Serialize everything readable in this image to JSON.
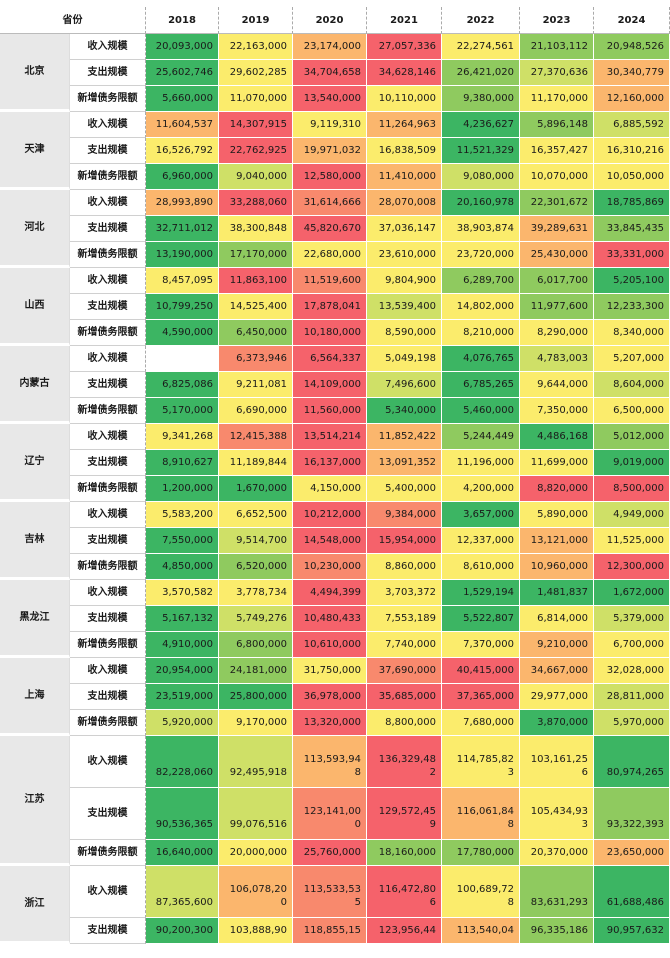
{
  "header": {
    "province_label": "省份",
    "years": [
      "2018",
      "2019",
      "2020",
      "2021",
      "2022",
      "2023",
      "2024"
    ]
  },
  "metric_labels": {
    "income": "收入规模",
    "expenditure": "支出规模",
    "new_debt": "新增债务限额"
  },
  "colors": {
    "deep_green": "#3cb563",
    "green": "#8fca5f",
    "yellow_green": "#cfe067",
    "yellow": "#fbec6c",
    "orange": "#fbb66d",
    "red_orange": "#f8896d",
    "red": "#f5626b",
    "empty": "#ffffff"
  },
  "provinces": [
    {
      "name": "北京",
      "rows": [
        {
          "metric": "收入规模",
          "values": [
            "20,093,000",
            "22,163,000",
            "23,174,000",
            "27,057,336",
            "22,274,561",
            "21,103,112",
            "20,948,526"
          ],
          "colors": [
            "deep_green",
            "yellow",
            "orange",
            "red",
            "yellow",
            "green",
            "green"
          ]
        },
        {
          "metric": "支出规模",
          "values": [
            "25,602,746",
            "29,602,285",
            "34,704,658",
            "34,628,146",
            "26,421,020",
            "27,370,636",
            "30,340,779"
          ],
          "colors": [
            "deep_green",
            "yellow",
            "red",
            "red",
            "green",
            "yellow_green",
            "orange"
          ]
        },
        {
          "metric": "新增债务限额",
          "values": [
            "5,660,000",
            "11,070,000",
            "13,540,000",
            "10,110,000",
            "9,380,000",
            "11,170,000",
            "12,160,000"
          ],
          "colors": [
            "deep_green",
            "yellow",
            "red",
            "yellow",
            "green",
            "yellow",
            "orange"
          ]
        }
      ]
    },
    {
      "name": "天津",
      "rows": [
        {
          "metric": "收入规模",
          "values": [
            "11,604,537",
            "14,307,915",
            "9,119,310",
            "11,264,963",
            "4,236,627",
            "5,896,148",
            "6,885,592"
          ],
          "colors": [
            "orange",
            "red",
            "yellow",
            "orange",
            "deep_green",
            "green",
            "yellow_green"
          ]
        },
        {
          "metric": "支出规模",
          "values": [
            "16,526,792",
            "22,762,925",
            "19,971,032",
            "16,838,509",
            "11,521,329",
            "16,357,427",
            "16,310,216"
          ],
          "colors": [
            "yellow",
            "red",
            "orange",
            "yellow",
            "deep_green",
            "yellow",
            "yellow"
          ]
        },
        {
          "metric": "新增债务限额",
          "values": [
            "6,960,000",
            "9,040,000",
            "12,580,000",
            "11,410,000",
            "9,080,000",
            "10,070,000",
            "10,050,000"
          ],
          "colors": [
            "deep_green",
            "yellow_green",
            "red",
            "orange",
            "yellow_green",
            "yellow",
            "yellow"
          ]
        }
      ]
    },
    {
      "name": "河北",
      "rows": [
        {
          "metric": "收入规模",
          "values": [
            "28,993,890",
            "33,288,060",
            "31,614,666",
            "28,070,008",
            "20,160,978",
            "22,301,672",
            "18,785,869"
          ],
          "colors": [
            "orange",
            "red",
            "red_orange",
            "orange",
            "deep_green",
            "green",
            "deep_green"
          ]
        },
        {
          "metric": "支出规模",
          "values": [
            "32,711,012",
            "38,300,848",
            "45,820,670",
            "37,036,147",
            "38,903,874",
            "39,289,631",
            "33,845,435"
          ],
          "colors": [
            "deep_green",
            "yellow",
            "red",
            "yellow",
            "yellow",
            "orange",
            "green"
          ]
        },
        {
          "metric": "新增债务限额",
          "values": [
            "13,190,000",
            "17,170,000",
            "22,680,000",
            "23,610,000",
            "23,720,000",
            "25,430,000",
            "33,331,000"
          ],
          "colors": [
            "deep_green",
            "green",
            "yellow",
            "yellow",
            "yellow",
            "orange",
            "red"
          ]
        }
      ]
    },
    {
      "name": "山西",
      "rows": [
        {
          "metric": "收入规模",
          "values": [
            "8,457,095",
            "11,863,100",
            "11,519,600",
            "9,804,900",
            "6,289,700",
            "6,017,700",
            "5,205,100"
          ],
          "colors": [
            "yellow",
            "red",
            "red_orange",
            "yellow",
            "green",
            "green",
            "deep_green"
          ]
        },
        {
          "metric": "支出规模",
          "values": [
            "10,799,250",
            "14,525,400",
            "17,878,041",
            "13,539,400",
            "14,802,000",
            "11,977,600",
            "12,233,300"
          ],
          "colors": [
            "deep_green",
            "yellow",
            "red",
            "yellow_green",
            "yellow",
            "green",
            "green"
          ]
        },
        {
          "metric": "新增债务限额",
          "values": [
            "4,590,000",
            "6,450,000",
            "10,180,000",
            "8,590,000",
            "8,210,000",
            "8,290,000",
            "8,340,000"
          ],
          "colors": [
            "deep_green",
            "green",
            "red",
            "yellow",
            "yellow",
            "yellow",
            "yellow"
          ]
        }
      ]
    },
    {
      "name": "内蒙古",
      "rows": [
        {
          "metric": "收入规模",
          "values": [
            "",
            "6,373,946",
            "6,564,337",
            "5,049,198",
            "4,076,765",
            "4,783,003",
            "5,207,000"
          ],
          "colors": [
            "empty",
            "red_orange",
            "red",
            "yellow",
            "deep_green",
            "yellow_green",
            "yellow"
          ]
        },
        {
          "metric": "支出规模",
          "values": [
            "6,825,086",
            "9,211,081",
            "14,109,000",
            "7,496,600",
            "6,785,265",
            "9,644,000",
            "8,604,000"
          ],
          "colors": [
            "deep_green",
            "yellow",
            "red",
            "yellow_green",
            "deep_green",
            "yellow",
            "yellow_green"
          ]
        },
        {
          "metric": "新增债务限额",
          "values": [
            "5,170,000",
            "6,690,000",
            "11,560,000",
            "5,340,000",
            "5,460,000",
            "7,350,000",
            "6,500,000"
          ],
          "colors": [
            "deep_green",
            "yellow",
            "red",
            "deep_green",
            "deep_green",
            "yellow",
            "yellow"
          ]
        }
      ]
    },
    {
      "name": "辽宁",
      "rows": [
        {
          "metric": "收入规模",
          "values": [
            "9,341,268",
            "12,415,388",
            "13,514,214",
            "11,852,422",
            "5,244,449",
            "4,486,168",
            "5,012,000"
          ],
          "colors": [
            "yellow",
            "red_orange",
            "red",
            "orange",
            "green",
            "deep_green",
            "green"
          ]
        },
        {
          "metric": "支出规模",
          "values": [
            "8,910,627",
            "11,189,844",
            "16,137,000",
            "13,091,352",
            "11,196,000",
            "11,699,000",
            "9,019,000"
          ],
          "colors": [
            "deep_green",
            "yellow",
            "red",
            "orange",
            "yellow",
            "yellow",
            "deep_green"
          ]
        },
        {
          "metric": "新增债务限额",
          "values": [
            "1,200,000",
            "1,670,000",
            "4,150,000",
            "5,400,000",
            "4,200,000",
            "8,820,000",
            "8,500,000"
          ],
          "colors": [
            "deep_green",
            "deep_green",
            "yellow",
            "yellow",
            "yellow",
            "red",
            "red"
          ]
        }
      ]
    },
    {
      "name": "吉林",
      "rows": [
        {
          "metric": "收入规模",
          "values": [
            "5,583,200",
            "6,652,500",
            "10,212,000",
            "9,384,000",
            "3,657,000",
            "5,890,000",
            "4,949,000"
          ],
          "colors": [
            "yellow",
            "yellow",
            "red",
            "red_orange",
            "deep_green",
            "yellow",
            "yellow_green"
          ]
        },
        {
          "metric": "支出规模",
          "values": [
            "7,550,000",
            "9,514,700",
            "14,548,000",
            "15,954,000",
            "12,337,000",
            "13,121,000",
            "11,525,000"
          ],
          "colors": [
            "deep_green",
            "yellow_green",
            "red",
            "red",
            "yellow",
            "orange",
            "yellow"
          ]
        },
        {
          "metric": "新增债务限额",
          "values": [
            "4,850,000",
            "6,520,000",
            "10,230,000",
            "8,860,000",
            "8,610,000",
            "10,960,000",
            "12,300,000"
          ],
          "colors": [
            "deep_green",
            "green",
            "red_orange",
            "yellow",
            "yellow",
            "orange",
            "red"
          ]
        }
      ]
    },
    {
      "name": "黑龙江",
      "rows": [
        {
          "metric": "收入规模",
          "values": [
            "3,570,582",
            "3,778,734",
            "4,494,399",
            "3,703,372",
            "1,529,194",
            "1,481,837",
            "1,672,000"
          ],
          "colors": [
            "yellow",
            "yellow",
            "red",
            "yellow",
            "deep_green",
            "deep_green",
            "deep_green"
          ]
        },
        {
          "metric": "支出规模",
          "values": [
            "5,167,132",
            "5,749,276",
            "10,480,433",
            "7,553,189",
            "5,522,807",
            "6,814,000",
            "5,379,000"
          ],
          "colors": [
            "deep_green",
            "yellow_green",
            "red",
            "yellow",
            "deep_green",
            "yellow",
            "yellow_green"
          ]
        },
        {
          "metric": "新增债务限额",
          "values": [
            "4,910,000",
            "6,800,000",
            "10,610,000",
            "7,740,000",
            "7,370,000",
            "9,210,000",
            "6,700,000"
          ],
          "colors": [
            "deep_green",
            "green",
            "red",
            "yellow",
            "yellow",
            "orange",
            "yellow"
          ]
        }
      ]
    },
    {
      "name": "上海",
      "rows": [
        {
          "metric": "收入规模",
          "values": [
            "20,954,000",
            "24,181,000",
            "31,750,000",
            "37,690,000",
            "40,415,000",
            "34,667,000",
            "32,028,000"
          ],
          "colors": [
            "deep_green",
            "green",
            "yellow",
            "red_orange",
            "red",
            "orange",
            "yellow"
          ]
        },
        {
          "metric": "支出规模",
          "values": [
            "23,519,000",
            "25,800,000",
            "36,978,000",
            "35,685,000",
            "37,365,000",
            "29,977,000",
            "28,811,000"
          ],
          "colors": [
            "deep_green",
            "deep_green",
            "red",
            "red",
            "red",
            "yellow",
            "yellow_green"
          ]
        },
        {
          "metric": "新增债务限额",
          "values": [
            "5,920,000",
            "9,170,000",
            "13,320,000",
            "8,800,000",
            "7,680,000",
            "3,870,000",
            "5,970,000"
          ],
          "colors": [
            "yellow_green",
            "yellow",
            "red",
            "yellow",
            "yellow",
            "deep_green",
            "yellow_green"
          ]
        }
      ]
    },
    {
      "name": "江苏",
      "rows": [
        {
          "metric": "收入规模",
          "tall": true,
          "values": [
            "82,228,060",
            "92,495,918",
            "113,593,948",
            "136,329,482",
            "114,785,823",
            "103,161,256",
            "80,974,265"
          ],
          "colors": [
            "deep_green",
            "yellow_green",
            "orange",
            "red",
            "yellow",
            "yellow",
            "deep_green"
          ]
        },
        {
          "metric": "支出规模",
          "tall": true,
          "values": [
            "90,536,365",
            "99,076,516",
            "123,141,000",
            "129,572,459",
            "116,061,848",
            "105,434,933",
            "93,322,393"
          ],
          "colors": [
            "deep_green",
            "yellow_green",
            "red_orange",
            "red",
            "orange",
            "yellow",
            "green"
          ]
        },
        {
          "metric": "新增债务限额",
          "values": [
            "16,640,000",
            "20,000,000",
            "25,760,000",
            "18,160,000",
            "17,780,000",
            "20,370,000",
            "23,650,000"
          ],
          "colors": [
            "deep_green",
            "yellow",
            "red",
            "green",
            "green",
            "yellow",
            "orange"
          ]
        }
      ]
    },
    {
      "name": "浙江",
      "rows": [
        {
          "metric": "收入规模",
          "tall": true,
          "values": [
            "87,365,600",
            "106,078,200",
            "113,533,535",
            "116,472,806",
            "100,689,728",
            "83,631,293",
            "61,688,486"
          ],
          "colors": [
            "yellow_green",
            "orange",
            "red_orange",
            "red",
            "yellow",
            "green",
            "deep_green"
          ]
        },
        {
          "metric": "支出规模",
          "values": [
            "90,200,300",
            "103,888,90",
            "118,855,15",
            "123,956,44",
            "113,540,04",
            "96,335,186",
            "90,957,632"
          ],
          "colors": [
            "deep_green",
            "yellow",
            "red_orange",
            "red",
            "orange",
            "green",
            "deep_green"
          ]
        }
      ]
    }
  ]
}
